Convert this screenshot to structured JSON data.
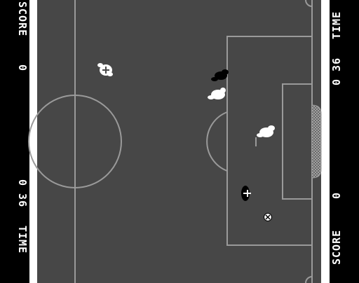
{
  "left_hud": {
    "score_label": "SCORE",
    "score_value": "0",
    "time_value": "0 36",
    "time_label": "TIME"
  },
  "right_hud": {
    "time_label": "TIME",
    "time_value": "0 36",
    "score_value": "0",
    "score_label": "SCORE"
  },
  "colors": {
    "pitch": "#474747",
    "lines": "#9a9a9a",
    "border": "#ffffff",
    "team_light": "#ffffff",
    "team_dark": "#000000",
    "background": "#000000"
  },
  "icons": {
    "ball": "soccer-ball-icon",
    "net": "goal-net-icon"
  }
}
